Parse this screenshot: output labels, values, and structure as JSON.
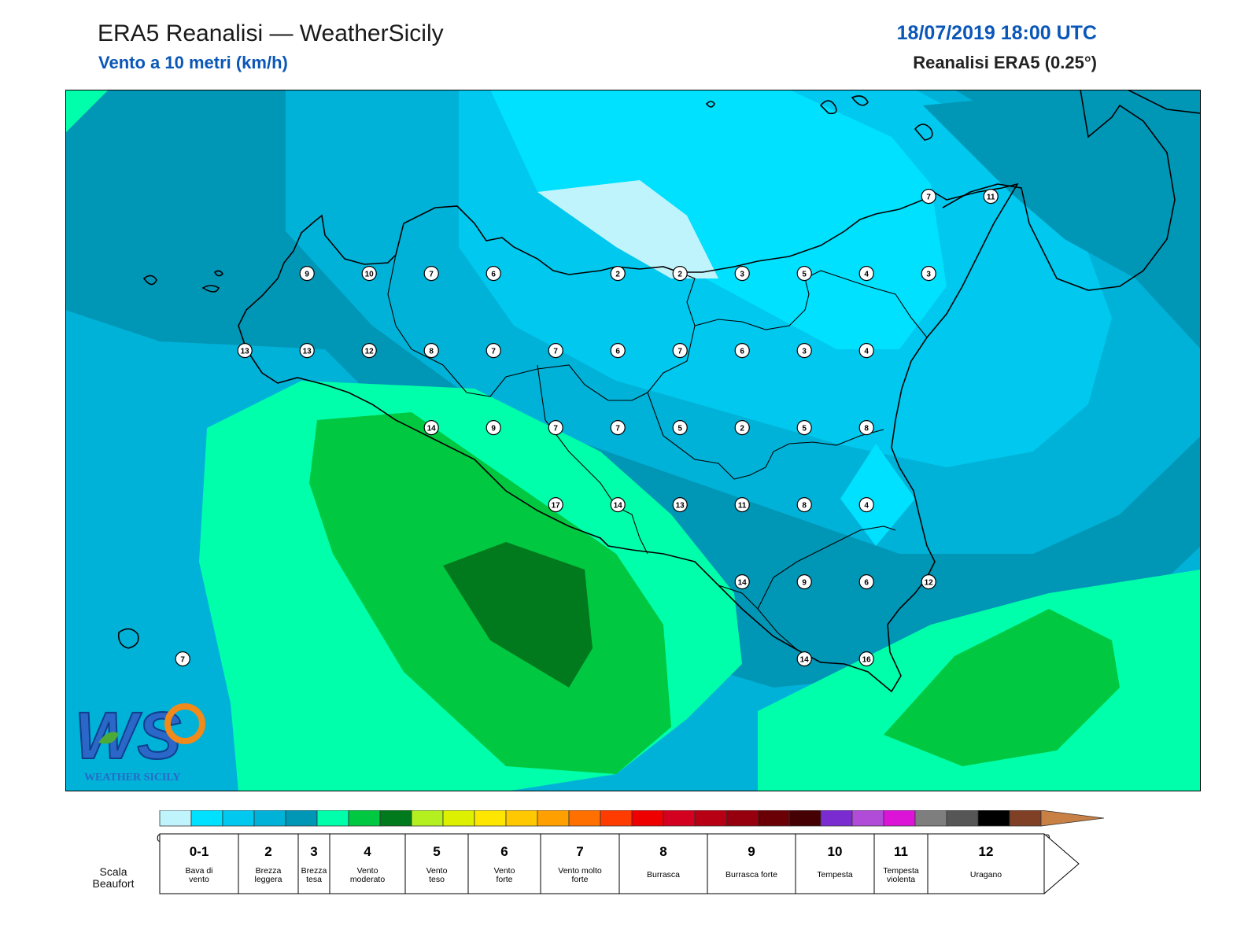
{
  "header": {
    "title": "ERA5 Reanalisi — WeatherSicily",
    "subtitle": "Vento a 10 metri (km/h)",
    "datetime": "18/07/2019 18:00 UTC",
    "source": "Reanalisi ERA5 (0.25°)"
  },
  "logo": {
    "text": "WEATHER SICILY",
    "mark": "WS"
  },
  "colors": {
    "coast": "#000000",
    "frame": "#000000",
    "marker_fill": "#ffffff",
    "logo_blue": "#2a67c8",
    "logo_orange": "#f08a1a"
  },
  "stations": [
    {
      "lon": 12.9,
      "lat": 38.3,
      "v": 9
    },
    {
      "lon": 13.4,
      "lat": 38.3,
      "v": 10
    },
    {
      "lon": 13.9,
      "lat": 38.3,
      "v": 7
    },
    {
      "lon": 14.4,
      "lat": 38.3,
      "v": 6
    },
    {
      "lon": 15.4,
      "lat": 38.3,
      "v": 2
    },
    {
      "lon": 15.9,
      "lat": 38.3,
      "v": 2
    },
    {
      "lon": 16.4,
      "lat": 38.3,
      "v": 3
    },
    {
      "lon": 16.9,
      "lat": 38.3,
      "v": 5
    },
    {
      "lon": 17.4,
      "lat": 38.3,
      "v": 4
    },
    {
      "lon": 17.9,
      "lat": 38.3,
      "v": 3
    },
    {
      "lon": 12.4,
      "lat": 37.8,
      "v": 13
    },
    {
      "lon": 12.9,
      "lat": 37.8,
      "v": 13
    },
    {
      "lon": 13.4,
      "lat": 37.8,
      "v": 12
    },
    {
      "lon": 13.9,
      "lat": 37.8,
      "v": 8
    },
    {
      "lon": 14.4,
      "lat": 37.8,
      "v": 7
    },
    {
      "lon": 14.9,
      "lat": 37.8,
      "v": 7
    },
    {
      "lon": 15.4,
      "lat": 37.8,
      "v": 6
    },
    {
      "lon": 15.9,
      "lat": 37.8,
      "v": 7
    },
    {
      "lon": 16.4,
      "lat": 37.8,
      "v": 6
    },
    {
      "lon": 16.9,
      "lat": 37.8,
      "v": 3
    },
    {
      "lon": 17.4,
      "lat": 37.8,
      "v": 4
    },
    {
      "lon": 13.9,
      "lat": 37.3,
      "v": 14
    },
    {
      "lon": 14.4,
      "lat": 37.3,
      "v": 9
    },
    {
      "lon": 14.9,
      "lat": 37.3,
      "v": 7
    },
    {
      "lon": 15.4,
      "lat": 37.3,
      "v": 7
    },
    {
      "lon": 15.9,
      "lat": 37.3,
      "v": 5
    },
    {
      "lon": 16.4,
      "lat": 37.3,
      "v": 2
    },
    {
      "lon": 16.9,
      "lat": 37.3,
      "v": 5
    },
    {
      "lon": 17.4,
      "lat": 37.3,
      "v": 8
    },
    {
      "lon": 14.9,
      "lat": 36.8,
      "v": 17
    },
    {
      "lon": 15.4,
      "lat": 36.8,
      "v": 14
    },
    {
      "lon": 15.9,
      "lat": 36.8,
      "v": 13
    },
    {
      "lon": 16.4,
      "lat": 36.8,
      "v": 11
    },
    {
      "lon": 16.9,
      "lat": 36.8,
      "v": 8
    },
    {
      "lon": 17.4,
      "lat": 36.8,
      "v": 4
    },
    {
      "lon": 16.4,
      "lat": 36.3,
      "v": 14
    },
    {
      "lon": 16.9,
      "lat": 36.3,
      "v": 9
    },
    {
      "lon": 17.4,
      "lat": 36.3,
      "v": 6
    },
    {
      "lon": 17.9,
      "lat": 36.3,
      "v": 12
    },
    {
      "lon": 16.9,
      "lat": 35.8,
      "v": 14
    },
    {
      "lon": 17.4,
      "lat": 35.8,
      "v": 16
    },
    {
      "lon": 17.9,
      "lat": 38.8,
      "v": 7
    },
    {
      "lon": 18.4,
      "lat": 38.8,
      "v": 11
    },
    {
      "lon": 11.9,
      "lat": 35.8,
      "v": 7
    }
  ],
  "colorbar": {
    "ticks": [
      "0",
      "2",
      "5",
      "7",
      "10",
      "15",
      "20",
      "25",
      "30",
      "35",
      "40",
      "45",
      "50",
      "55",
      "60",
      "65",
      "70",
      "75",
      "80",
      "85",
      "90",
      "95",
      "100",
      "110",
      "120",
      "130",
      "140",
      "150",
      "160"
    ],
    "colors": [
      "#c0f4fc",
      "#00e0ff",
      "#00c8ee",
      "#00b2d8",
      "#0096b6",
      "#00ffaa",
      "#00c840",
      "#007a1c",
      "#b4f020",
      "#dcf000",
      "#ffe600",
      "#ffc800",
      "#ffa000",
      "#ff7000",
      "#ff3c00",
      "#ee0000",
      "#d40020",
      "#b80014",
      "#96000e",
      "#6a0006",
      "#440002",
      "#7a2cd0",
      "#b04cd8",
      "#dc14d8",
      "#7e7e7e",
      "#565656",
      "#000000",
      "#804026",
      "#c88044"
    ]
  },
  "beaufort": {
    "label": "Scala Beaufort",
    "scale": [
      {
        "num": "0-1",
        "name": "Bava di vento"
      },
      {
        "num": "2",
        "name": "Brezza leggera"
      },
      {
        "num": "3",
        "name": "Brezza tesa"
      },
      {
        "num": "4",
        "name": "Vento moderato"
      },
      {
        "num": "5",
        "name": "Vento teso"
      },
      {
        "num": "6",
        "name": "Vento forte"
      },
      {
        "num": "7",
        "name": "Vento molto forte"
      },
      {
        "num": "8",
        "name": "Burrasca"
      },
      {
        "num": "9",
        "name": "Burrasca forte"
      },
      {
        "num": "10",
        "name": "Tempesta"
      },
      {
        "num": "11",
        "name": "Tempesta violenta"
      },
      {
        "num": "12",
        "name": "Uragano"
      }
    ]
  }
}
